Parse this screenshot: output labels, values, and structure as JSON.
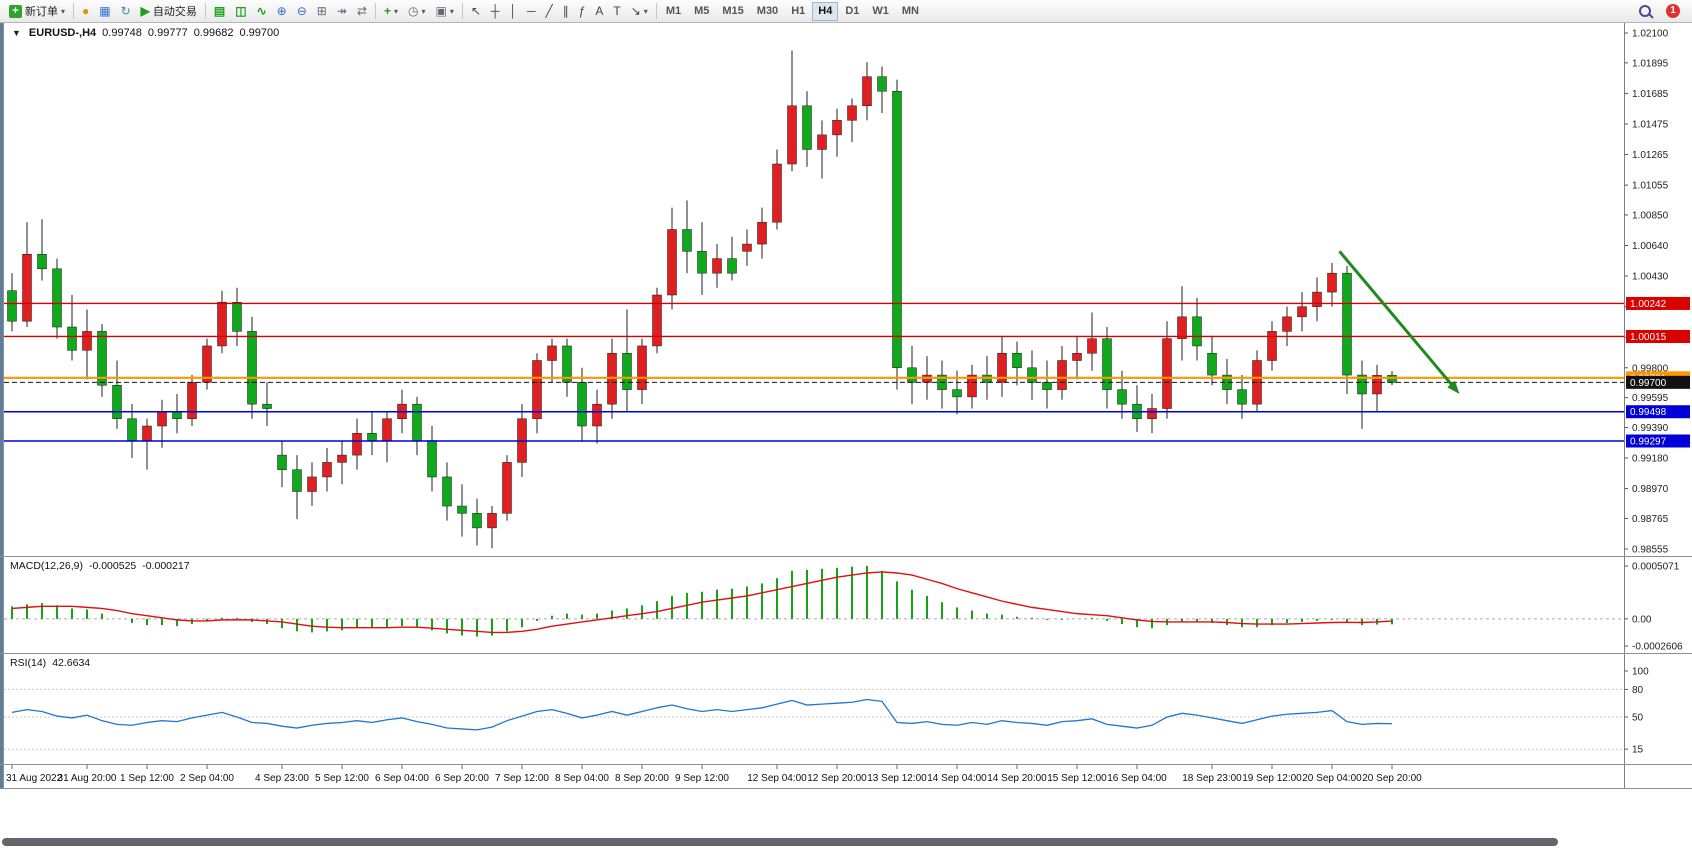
{
  "toolbar": {
    "new_order_label": "新订单",
    "auto_trading_label": "自动交易",
    "timeframes": [
      "M1",
      "M5",
      "M15",
      "M30",
      "H1",
      "H4",
      "D1",
      "W1",
      "MN"
    ],
    "active_timeframe": "H4",
    "notification_count": "1",
    "icons": {
      "new_order": "+",
      "dropdown": "▾",
      "coin": "●",
      "profile": "▦",
      "refresh": "↻",
      "autoplay": "▶",
      "bars": "▤",
      "candles": "◫",
      "line": "∿",
      "zoom_in": "⊕",
      "zoom_out": "⊖",
      "tile": "⊞",
      "autoscroll": "↠",
      "shift": "⇄",
      "indicators": "+",
      "periods": "◷",
      "templates": "▣",
      "cursor": "↖",
      "crosshair": "┼",
      "vline": "│",
      "hline": "─",
      "trend": "╱",
      "channel": "∥",
      "fib": "ƒ",
      "text": "A",
      "label": "T",
      "arrows": "↘",
      "one_click": "▼"
    }
  },
  "chart": {
    "title": "EURUSD-,H4",
    "open": "0.99748",
    "high": "0.99777",
    "low": "0.99682",
    "close": "0.99700"
  },
  "chart_data": {
    "type": "candlestick",
    "symbol": "EURUSD-",
    "timeframe": "H4",
    "colors": {
      "bull": "#e02020",
      "bear": "#10a81c",
      "wick": "#222222",
      "macd_hist": "#17a317",
      "macd_signal": "#e01010",
      "rsi_line": "#2277cc",
      "arrow": "#1f8a1f"
    },
    "y_ticks": [
      "1.02100",
      "1.01895",
      "1.01685",
      "1.01475",
      "1.01265",
      "1.01055",
      "1.00850",
      "1.00640",
      "1.00430",
      "1.00220",
      "1.00010",
      "0.99800",
      "0.99595",
      "0.99390",
      "0.99180",
      "0.98970",
      "0.98765",
      "0.98555"
    ],
    "candles": [
      [
        1.0033,
        1.0045,
        1.0005,
        1.0012
      ],
      [
        1.0012,
        1.008,
        1.0008,
        1.0058
      ],
      [
        1.0058,
        1.0082,
        1.004,
        1.0048
      ],
      [
        1.0048,
        1.0055,
        1.0,
        1.0008
      ],
      [
        1.0008,
        1.003,
        0.9985,
        0.9992
      ],
      [
        0.9992,
        1.002,
        0.9972,
        1.0005
      ],
      [
        1.0005,
        1.001,
        0.996,
        0.9968
      ],
      [
        0.9968,
        0.9985,
        0.9938,
        0.9945
      ],
      [
        0.9945,
        0.9955,
        0.9918,
        0.993
      ],
      [
        0.993,
        0.9945,
        0.991,
        0.994
      ],
      [
        0.994,
        0.9958,
        0.9925,
        0.995
      ],
      [
        0.995,
        0.9962,
        0.9935,
        0.9945
      ],
      [
        0.9945,
        0.9975,
        0.994,
        0.997
      ],
      [
        0.997,
        1.0,
        0.9965,
        0.9995
      ],
      [
        0.9995,
        1.0033,
        0.999,
        1.0025
      ],
      [
        1.0025,
        1.0035,
        0.9995,
        1.0005
      ],
      [
        1.0005,
        1.0015,
        0.9945,
        0.9955
      ],
      [
        0.9955,
        0.997,
        0.994,
        0.9952
      ],
      [
        0.992,
        0.993,
        0.9898,
        0.991
      ],
      [
        0.991,
        0.992,
        0.9876,
        0.9895
      ],
      [
        0.9895,
        0.9915,
        0.9885,
        0.9905
      ],
      [
        0.9905,
        0.9925,
        0.9895,
        0.9915
      ],
      [
        0.9915,
        0.993,
        0.99,
        0.992
      ],
      [
        0.992,
        0.9945,
        0.991,
        0.9935
      ],
      [
        0.9935,
        0.995,
        0.992,
        0.993
      ],
      [
        0.993,
        0.995,
        0.9915,
        0.9945
      ],
      [
        0.9945,
        0.9965,
        0.9935,
        0.9955
      ],
      [
        0.9955,
        0.996,
        0.992,
        0.993
      ],
      [
        0.993,
        0.994,
        0.9895,
        0.9905
      ],
      [
        0.9905,
        0.9915,
        0.9875,
        0.9885
      ],
      [
        0.9885,
        0.99,
        0.9864,
        0.988
      ],
      [
        0.988,
        0.989,
        0.9858,
        0.987
      ],
      [
        0.987,
        0.9885,
        0.9856,
        0.988
      ],
      [
        0.988,
        0.992,
        0.9875,
        0.9915
      ],
      [
        0.9915,
        0.9955,
        0.9905,
        0.9945
      ],
      [
        0.9945,
        0.999,
        0.9935,
        0.9985
      ],
      [
        0.9985,
        1.0,
        0.997,
        0.9995
      ],
      [
        0.9995,
        1.0,
        0.996,
        0.997
      ],
      [
        0.997,
        0.998,
        0.993,
        0.994
      ],
      [
        0.994,
        0.9965,
        0.9928,
        0.9955
      ],
      [
        0.9955,
        1.0,
        0.9945,
        0.999
      ],
      [
        0.999,
        1.002,
        0.995,
        0.9965
      ],
      [
        0.9965,
        1.0,
        0.9955,
        0.9995
      ],
      [
        0.9995,
        1.0035,
        0.999,
        1.003
      ],
      [
        1.003,
        1.009,
        1.002,
        1.0075
      ],
      [
        1.0075,
        1.0095,
        1.0045,
        1.006
      ],
      [
        1.006,
        1.008,
        1.003,
        1.0045
      ],
      [
        1.0045,
        1.0065,
        1.0035,
        1.0055
      ],
      [
        1.0055,
        1.007,
        1.004,
        1.0045
      ],
      [
        1.006,
        1.0075,
        1.005,
        1.0065
      ],
      [
        1.0065,
        1.009,
        1.0055,
        1.008
      ],
      [
        1.008,
        1.013,
        1.0075,
        1.012
      ],
      [
        1.012,
        1.0198,
        1.0115,
        1.016
      ],
      [
        1.016,
        1.017,
        1.0118,
        1.013
      ],
      [
        1.013,
        1.015,
        1.011,
        1.014
      ],
      [
        1.014,
        1.0158,
        1.0125,
        1.015
      ],
      [
        1.015,
        1.0165,
        1.0135,
        1.016
      ],
      [
        1.016,
        1.019,
        1.015,
        1.018
      ],
      [
        1.018,
        1.0187,
        1.0155,
        1.017
      ],
      [
        1.017,
        1.0178,
        0.9965,
        0.998
      ],
      [
        0.998,
        0.9995,
        0.9955,
        0.997
      ],
      [
        0.997,
        0.9988,
        0.9958,
        0.9975
      ],
      [
        0.9975,
        0.9985,
        0.9952,
        0.9965
      ],
      [
        0.9965,
        0.9978,
        0.9948,
        0.996
      ],
      [
        0.996,
        0.9982,
        0.9952,
        0.9975
      ],
      [
        0.9975,
        0.9988,
        0.9958,
        0.997
      ],
      [
        0.997,
        1.0002,
        0.996,
        0.999
      ],
      [
        0.999,
        0.9998,
        0.9968,
        0.998
      ],
      [
        0.998,
        0.9992,
        0.9958,
        0.997
      ],
      [
        0.997,
        0.9985,
        0.9952,
        0.9965
      ],
      [
        0.9965,
        0.9995,
        0.9958,
        0.9985
      ],
      [
        0.9985,
        1.0002,
        0.9972,
        0.999
      ],
      [
        0.999,
        1.0018,
        0.9978,
        1.0
      ],
      [
        1.0,
        1.0008,
        0.9952,
        0.9965
      ],
      [
        0.9965,
        0.9978,
        0.9945,
        0.9955
      ],
      [
        0.9955,
        0.9968,
        0.9936,
        0.9945
      ],
      [
        0.9945,
        0.9962,
        0.9935,
        0.9952
      ],
      [
        0.9952,
        1.0012,
        0.9945,
        1.0
      ],
      [
        1.0,
        1.0036,
        0.9985,
        1.0015
      ],
      [
        1.0015,
        1.0028,
        0.9985,
        0.9995
      ],
      [
        0.999,
        1.0002,
        0.9968,
        0.9975
      ],
      [
        0.9975,
        0.9986,
        0.9955,
        0.9965
      ],
      [
        0.9965,
        0.9975,
        0.9945,
        0.9955
      ],
      [
        0.9955,
        0.9992,
        0.995,
        0.9985
      ],
      [
        0.9985,
        1.0012,
        0.9978,
        1.0005
      ],
      [
        1.0005,
        1.0022,
        0.9995,
        1.0015
      ],
      [
        1.0015,
        1.0032,
        1.0005,
        1.0022
      ],
      [
        1.0022,
        1.0042,
        1.0012,
        1.0032
      ],
      [
        1.0032,
        1.0052,
        1.0022,
        1.0045
      ],
      [
        1.0045,
        1.005,
        0.9962,
        0.9975
      ],
      [
        0.9975,
        0.9985,
        0.9938,
        0.9962
      ],
      [
        0.9962,
        0.9982,
        0.995,
        0.99748
      ],
      [
        0.99748,
        0.99777,
        0.99682,
        0.997
      ]
    ],
    "x_labels": [
      {
        "i": 0,
        "t": "31 Aug 2022"
      },
      {
        "i": 5,
        "t": "31 Aug 20:00"
      },
      {
        "i": 9,
        "t": "1 Sep 12:00"
      },
      {
        "i": 13,
        "t": "2 Sep 04:00"
      },
      {
        "i": 18,
        "t": "4 Sep 23:00"
      },
      {
        "i": 22,
        "t": "5 Sep 12:00"
      },
      {
        "i": 26,
        "t": "6 Sep 04:00"
      },
      {
        "i": 30,
        "t": "6 Sep 20:00"
      },
      {
        "i": 34,
        "t": "7 Sep 12:00"
      },
      {
        "i": 38,
        "t": "8 Sep 04:00"
      },
      {
        "i": 42,
        "t": "8 Sep 20:00"
      },
      {
        "i": 46,
        "t": "9 Sep 12:00"
      },
      {
        "i": 51,
        "t": "12 Sep 04:00"
      },
      {
        "i": 55,
        "t": "12 Sep 20:00"
      },
      {
        "i": 59,
        "t": "13 Sep 12:00"
      },
      {
        "i": 63,
        "t": "14 Sep 04:00"
      },
      {
        "i": 67,
        "t": "14 Sep 20:00"
      },
      {
        "i": 71,
        "t": "15 Sep 12:00"
      },
      {
        "i": 75,
        "t": "16 Sep 04:00"
      },
      {
        "i": 80,
        "t": "18 Sep 23:00"
      },
      {
        "i": 84,
        "t": "19 Sep 12:00"
      },
      {
        "i": 88,
        "t": "20 Sep 04:00"
      },
      {
        "i": 92,
        "t": "20 Sep 20:00"
      }
    ],
    "h_lines": [
      {
        "price": 1.00242,
        "label": "1.00242",
        "color": "#d90000",
        "style": "solid",
        "width": 1.4
      },
      {
        "price": 1.00015,
        "label": "1.00015",
        "color": "#d90000",
        "style": "solid",
        "width": 1.4
      },
      {
        "price": 0.99731,
        "label": "0.99731",
        "color": "#ff9500",
        "style": "solid",
        "width": 2.2
      },
      {
        "price": 0.997,
        "label": "0.99700",
        "color": "#111111",
        "style": "dash",
        "width": 1
      },
      {
        "price": 0.99498,
        "label": "0.99498",
        "color": "#0000d9",
        "style": "solid",
        "width": 1.6
      },
      {
        "price": 0.99297,
        "label": "0.99297",
        "color": "#0000d9",
        "style": "solid",
        "width": 1.6
      }
    ],
    "trend_arrow": {
      "from_bar": 88.5,
      "from_price": 1.006,
      "to_bar": 96.5,
      "to_price": 0.9962,
      "width": 3
    },
    "macd": {
      "name": "MACD(12,26,9)",
      "value_main": "-0.000525",
      "value_signal": "-0.000217",
      "scale": 0.0001,
      "max": 0.0005071,
      "min": -0.0002606,
      "y_ticks": [
        {
          "v": 0.0005071,
          "t": "0.0005071"
        },
        {
          "v": 0,
          "t": "0.00"
        },
        {
          "v": -0.0002606,
          "t": "-0.0002606"
        }
      ],
      "histogram": [
        1.2,
        1.4,
        1.5,
        1.3,
        1.0,
        0.9,
        0.5,
        0.0,
        -0.4,
        -0.6,
        -0.6,
        -0.7,
        -0.5,
        -0.2,
        0.1,
        0.1,
        -0.3,
        -0.5,
        -0.9,
        -1.2,
        -1.3,
        -1.2,
        -1.1,
        -0.9,
        -0.9,
        -0.8,
        -0.7,
        -0.8,
        -1.1,
        -1.4,
        -1.6,
        -1.7,
        -1.6,
        -1.2,
        -0.8,
        -0.2,
        0.3,
        0.5,
        0.4,
        0.5,
        0.8,
        1.0,
        1.3,
        1.7,
        2.2,
        2.5,
        2.6,
        2.8,
        2.9,
        3.1,
        3.4,
        3.9,
        4.6,
        4.7,
        4.8,
        4.9,
        5.0,
        5.07,
        4.6,
        3.6,
        2.8,
        2.2,
        1.6,
        1.1,
        0.8,
        0.5,
        0.4,
        0.2,
        0.1,
        -0.1,
        -0.1,
        0.0,
        0.1,
        -0.2,
        -0.5,
        -0.8,
        -0.9,
        -0.6,
        -0.3,
        -0.3,
        -0.4,
        -0.6,
        -0.8,
        -0.8,
        -0.6,
        -0.4,
        -0.3,
        -0.2,
        -0.1,
        -0.4,
        -0.6,
        -0.55,
        -0.525
      ],
      "signal": [
        1.0,
        1.1,
        1.2,
        1.2,
        1.2,
        1.1,
        1.0,
        0.8,
        0.5,
        0.3,
        0.1,
        -0.1,
        -0.2,
        -0.2,
        -0.1,
        -0.1,
        -0.1,
        -0.2,
        -0.3,
        -0.5,
        -0.7,
        -0.8,
        -0.85,
        -0.85,
        -0.85,
        -0.85,
        -0.8,
        -0.8,
        -0.9,
        -1.0,
        -1.1,
        -1.2,
        -1.3,
        -1.3,
        -1.2,
        -1.0,
        -0.7,
        -0.5,
        -0.3,
        -0.1,
        0.1,
        0.3,
        0.5,
        0.7,
        1.0,
        1.3,
        1.6,
        1.8,
        2.0,
        2.2,
        2.5,
        2.8,
        3.1,
        3.4,
        3.7,
        4.0,
        4.2,
        4.4,
        4.5,
        4.4,
        4.2,
        3.8,
        3.4,
        2.9,
        2.5,
        2.1,
        1.7,
        1.4,
        1.1,
        0.9,
        0.7,
        0.5,
        0.4,
        0.3,
        0.1,
        -0.1,
        -0.25,
        -0.3,
        -0.3,
        -0.3,
        -0.3,
        -0.35,
        -0.45,
        -0.5,
        -0.5,
        -0.5,
        -0.45,
        -0.4,
        -0.35,
        -0.33,
        -0.35,
        -0.3,
        -0.217
      ]
    },
    "rsi": {
      "name": "RSI(14)",
      "value": "42.6634",
      "range": [
        0,
        100
      ],
      "y_ticks": [
        {
          "v": 100,
          "t": "100"
        },
        {
          "v": 80,
          "t": "80"
        },
        {
          "v": 50,
          "t": "50"
        },
        {
          "v": 15,
          "t": "15"
        }
      ],
      "levels": [
        80,
        50,
        15
      ],
      "values": [
        55,
        58,
        56,
        51,
        49,
        52,
        46,
        42,
        41,
        44,
        46,
        45,
        49,
        52,
        55,
        50,
        44,
        43,
        40,
        38,
        41,
        43,
        44,
        46,
        44,
        47,
        49,
        45,
        42,
        38,
        37,
        36,
        39,
        46,
        51,
        56,
        58,
        54,
        49,
        52,
        56,
        52,
        56,
        60,
        63,
        59,
        56,
        58,
        56,
        58,
        60,
        64,
        68,
        63,
        64,
        65,
        66,
        69,
        67,
        44,
        43,
        45,
        42,
        41,
        44,
        42,
        46,
        44,
        43,
        41,
        45,
        46,
        48,
        42,
        40,
        38,
        41,
        50,
        54,
        52,
        49,
        46,
        43,
        47,
        51,
        53,
        54,
        55,
        57,
        45,
        42,
        43,
        42.66
      ]
    }
  }
}
